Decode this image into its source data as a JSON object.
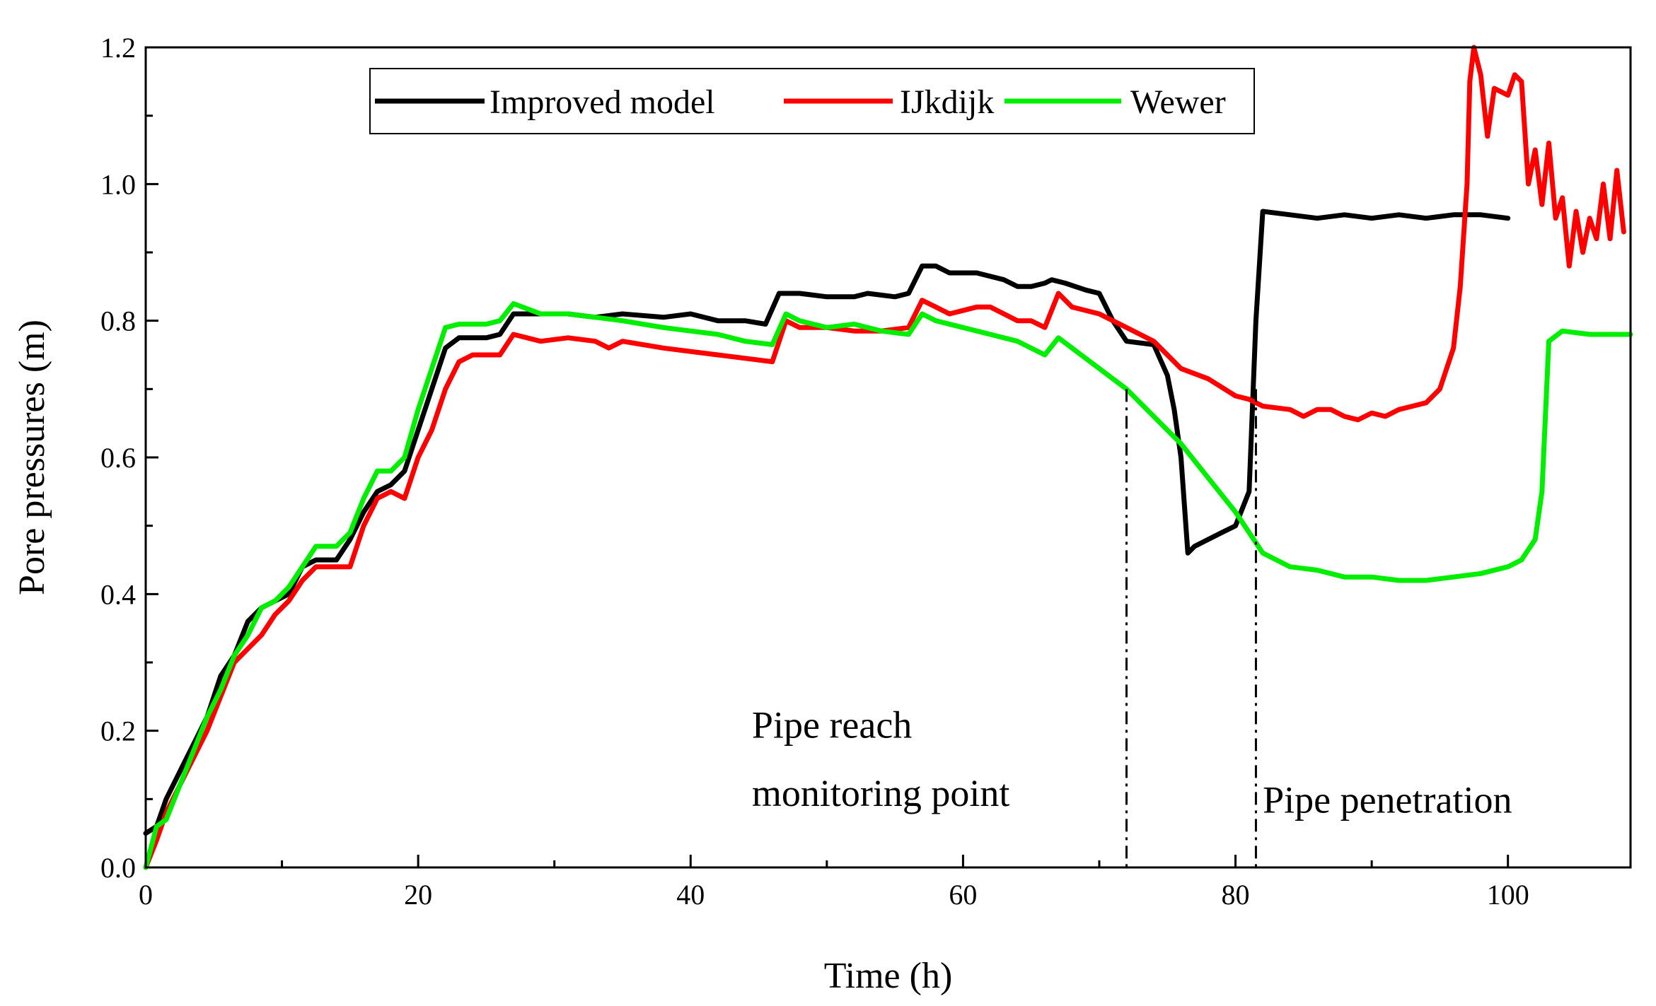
{
  "chart_data": {
    "type": "line",
    "title": "",
    "xlabel": "Time (h)",
    "ylabel": "Pore pressures (m)",
    "xlim": [
      0,
      109
    ],
    "ylim": [
      0,
      1.2
    ],
    "x_ticks": [
      0,
      20,
      40,
      60,
      80,
      100
    ],
    "y_ticks": [
      0.0,
      0.2,
      0.4,
      0.6,
      0.8,
      1.0,
      1.2
    ],
    "x_tick_labels": [
      "0",
      "20",
      "40",
      "60",
      "80",
      "100"
    ],
    "y_tick_labels": [
      "0.0",
      "0.2",
      "0.4",
      "0.6",
      "0.8",
      "1.0",
      "1.2"
    ],
    "grid": false,
    "legend_position": "top-left",
    "series": [
      {
        "name": "Improved model",
        "color": "#000000",
        "points": [
          [
            0,
            0.05
          ],
          [
            0.8,
            0.06
          ],
          [
            1.5,
            0.1
          ],
          [
            2.5,
            0.14
          ],
          [
            3.5,
            0.18
          ],
          [
            4.5,
            0.22
          ],
          [
            5.5,
            0.28
          ],
          [
            6.5,
            0.31
          ],
          [
            7.5,
            0.36
          ],
          [
            8.5,
            0.38
          ],
          [
            9.5,
            0.39
          ],
          [
            10.5,
            0.4
          ],
          [
            11.5,
            0.44
          ],
          [
            12.5,
            0.45
          ],
          [
            14,
            0.45
          ],
          [
            15,
            0.48
          ],
          [
            16,
            0.52
          ],
          [
            17,
            0.55
          ],
          [
            18,
            0.56
          ],
          [
            19,
            0.58
          ],
          [
            20,
            0.64
          ],
          [
            21,
            0.7
          ],
          [
            22,
            0.76
          ],
          [
            23,
            0.775
          ],
          [
            25,
            0.775
          ],
          [
            26,
            0.78
          ],
          [
            27,
            0.81
          ],
          [
            29,
            0.81
          ],
          [
            31,
            0.81
          ],
          [
            33,
            0.805
          ],
          [
            35,
            0.81
          ],
          [
            38,
            0.805
          ],
          [
            40,
            0.81
          ],
          [
            42,
            0.8
          ],
          [
            44,
            0.8
          ],
          [
            45.5,
            0.795
          ],
          [
            46.5,
            0.84
          ],
          [
            48,
            0.84
          ],
          [
            50,
            0.835
          ],
          [
            52,
            0.835
          ],
          [
            53,
            0.84
          ],
          [
            55,
            0.835
          ],
          [
            56,
            0.84
          ],
          [
            57,
            0.88
          ],
          [
            58,
            0.88
          ],
          [
            59,
            0.87
          ],
          [
            61,
            0.87
          ],
          [
            63,
            0.86
          ],
          [
            64,
            0.85
          ],
          [
            65,
            0.85
          ],
          [
            66,
            0.855
          ],
          [
            66.5,
            0.86
          ],
          [
            67.5,
            0.855
          ],
          [
            69,
            0.845
          ],
          [
            70,
            0.84
          ],
          [
            71,
            0.8
          ],
          [
            72,
            0.77
          ],
          [
            74,
            0.765
          ],
          [
            75,
            0.72
          ],
          [
            75.5,
            0.67
          ],
          [
            76,
            0.6
          ],
          [
            76.5,
            0.46
          ],
          [
            77,
            0.47
          ],
          [
            78,
            0.48
          ],
          [
            79,
            0.49
          ],
          [
            80,
            0.5
          ],
          [
            81,
            0.55
          ],
          [
            81.5,
            0.8
          ],
          [
            82,
            0.96
          ],
          [
            84,
            0.955
          ],
          [
            86,
            0.95
          ],
          [
            88,
            0.955
          ],
          [
            90,
            0.95
          ],
          [
            92,
            0.955
          ],
          [
            94,
            0.95
          ],
          [
            96,
            0.955
          ],
          [
            98,
            0.955
          ],
          [
            100,
            0.95
          ]
        ]
      },
      {
        "name": "IJkdijk",
        "color": "#ff0000",
        "points": [
          [
            0,
            0.0
          ],
          [
            0.8,
            0.04
          ],
          [
            1.5,
            0.08
          ],
          [
            2.5,
            0.12
          ],
          [
            3.5,
            0.16
          ],
          [
            4.5,
            0.2
          ],
          [
            5.5,
            0.25
          ],
          [
            6.5,
            0.3
          ],
          [
            7.5,
            0.32
          ],
          [
            8.5,
            0.34
          ],
          [
            9.5,
            0.37
          ],
          [
            10.5,
            0.39
          ],
          [
            11.5,
            0.42
          ],
          [
            12.5,
            0.44
          ],
          [
            14,
            0.44
          ],
          [
            15,
            0.44
          ],
          [
            16,
            0.5
          ],
          [
            17,
            0.54
          ],
          [
            18,
            0.55
          ],
          [
            19,
            0.54
          ],
          [
            20,
            0.6
          ],
          [
            21,
            0.64
          ],
          [
            22,
            0.7
          ],
          [
            23,
            0.74
          ],
          [
            24,
            0.75
          ],
          [
            26,
            0.75
          ],
          [
            27,
            0.78
          ],
          [
            29,
            0.77
          ],
          [
            31,
            0.775
          ],
          [
            33,
            0.77
          ],
          [
            34,
            0.76
          ],
          [
            35,
            0.77
          ],
          [
            38,
            0.76
          ],
          [
            40,
            0.755
          ],
          [
            42,
            0.75
          ],
          [
            44,
            0.745
          ],
          [
            46,
            0.74
          ],
          [
            47,
            0.8
          ],
          [
            48,
            0.79
          ],
          [
            50,
            0.79
          ],
          [
            52,
            0.785
          ],
          [
            54,
            0.785
          ],
          [
            56,
            0.79
          ],
          [
            57,
            0.83
          ],
          [
            58,
            0.82
          ],
          [
            59,
            0.81
          ],
          [
            60,
            0.815
          ],
          [
            61,
            0.82
          ],
          [
            62,
            0.82
          ],
          [
            63,
            0.81
          ],
          [
            64,
            0.8
          ],
          [
            65,
            0.8
          ],
          [
            66,
            0.79
          ],
          [
            67,
            0.84
          ],
          [
            68,
            0.82
          ],
          [
            70,
            0.81
          ],
          [
            72,
            0.79
          ],
          [
            74,
            0.77
          ],
          [
            76,
            0.73
          ],
          [
            78,
            0.715
          ],
          [
            80,
            0.69
          ],
          [
            81,
            0.685
          ],
          [
            82,
            0.675
          ],
          [
            84,
            0.67
          ],
          [
            85,
            0.66
          ],
          [
            86,
            0.67
          ],
          [
            87,
            0.67
          ],
          [
            88,
            0.66
          ],
          [
            89,
            0.655
          ],
          [
            90,
            0.665
          ],
          [
            91,
            0.66
          ],
          [
            92,
            0.67
          ],
          [
            93,
            0.675
          ],
          [
            94,
            0.68
          ],
          [
            95,
            0.7
          ],
          [
            96,
            0.76
          ],
          [
            96.5,
            0.85
          ],
          [
            97,
            1.0
          ],
          [
            97.2,
            1.15
          ],
          [
            97.5,
            1.2
          ],
          [
            98,
            1.16
          ],
          [
            98.5,
            1.07
          ],
          [
            99,
            1.14
          ],
          [
            100,
            1.13
          ],
          [
            100.5,
            1.16
          ],
          [
            101,
            1.15
          ],
          [
            101.5,
            1.0
          ],
          [
            102,
            1.05
          ],
          [
            102.5,
            0.97
          ],
          [
            103,
            1.06
          ],
          [
            103.5,
            0.95
          ],
          [
            104,
            0.98
          ],
          [
            104.5,
            0.88
          ],
          [
            105,
            0.96
          ],
          [
            105.5,
            0.9
          ],
          [
            106,
            0.95
          ],
          [
            106.5,
            0.92
          ],
          [
            107,
            1.0
          ],
          [
            107.5,
            0.92
          ],
          [
            108,
            1.02
          ],
          [
            108.5,
            0.93
          ]
        ]
      },
      {
        "name": "Wewer",
        "color": "#00ee00",
        "points": [
          [
            0,
            0.0
          ],
          [
            0.8,
            0.06
          ],
          [
            1.5,
            0.07
          ],
          [
            2.5,
            0.12
          ],
          [
            3.5,
            0.17
          ],
          [
            4.5,
            0.22
          ],
          [
            5.5,
            0.26
          ],
          [
            6.5,
            0.31
          ],
          [
            7.5,
            0.34
          ],
          [
            8.5,
            0.38
          ],
          [
            9.5,
            0.39
          ],
          [
            10.5,
            0.41
          ],
          [
            11.5,
            0.44
          ],
          [
            12.5,
            0.47
          ],
          [
            14,
            0.47
          ],
          [
            15,
            0.49
          ],
          [
            16,
            0.54
          ],
          [
            17,
            0.58
          ],
          [
            18,
            0.58
          ],
          [
            19,
            0.6
          ],
          [
            20,
            0.67
          ],
          [
            21,
            0.73
          ],
          [
            22,
            0.79
          ],
          [
            23,
            0.795
          ],
          [
            25,
            0.795
          ],
          [
            26,
            0.8
          ],
          [
            27,
            0.825
          ],
          [
            29,
            0.81
          ],
          [
            31,
            0.81
          ],
          [
            33,
            0.805
          ],
          [
            35,
            0.8
          ],
          [
            38,
            0.79
          ],
          [
            40,
            0.785
          ],
          [
            42,
            0.78
          ],
          [
            44,
            0.77
          ],
          [
            46,
            0.765
          ],
          [
            47,
            0.81
          ],
          [
            48,
            0.8
          ],
          [
            50,
            0.79
          ],
          [
            52,
            0.795
          ],
          [
            54,
            0.785
          ],
          [
            56,
            0.78
          ],
          [
            57,
            0.81
          ],
          [
            58,
            0.8
          ],
          [
            60,
            0.79
          ],
          [
            62,
            0.78
          ],
          [
            64,
            0.77
          ],
          [
            66,
            0.75
          ],
          [
            67,
            0.775
          ],
          [
            68,
            0.76
          ],
          [
            70,
            0.73
          ],
          [
            72,
            0.7
          ],
          [
            74,
            0.66
          ],
          [
            76,
            0.62
          ],
          [
            78,
            0.57
          ],
          [
            80,
            0.52
          ],
          [
            82,
            0.46
          ],
          [
            84,
            0.44
          ],
          [
            86,
            0.435
          ],
          [
            88,
            0.425
          ],
          [
            90,
            0.425
          ],
          [
            92,
            0.42
          ],
          [
            94,
            0.42
          ],
          [
            96,
            0.425
          ],
          [
            98,
            0.43
          ],
          [
            100,
            0.44
          ],
          [
            101,
            0.45
          ],
          [
            102,
            0.48
          ],
          [
            102.5,
            0.55
          ],
          [
            103,
            0.77
          ],
          [
            104,
            0.785
          ],
          [
            106,
            0.78
          ],
          [
            108,
            0.78
          ],
          [
            109,
            0.78
          ]
        ]
      }
    ],
    "vertical_lines": [
      {
        "x": 72,
        "style": "dash-dot"
      },
      {
        "x": 81.5,
        "style": "dash-dot"
      }
    ],
    "annotations": [
      {
        "text": "Pipe reach",
        "x": 44.5,
        "y": 0.19
      },
      {
        "text": "monitoring point",
        "x": 44.5,
        "y": 0.09
      },
      {
        "text": "Pipe penetration",
        "x": 82,
        "y": 0.08
      }
    ]
  }
}
